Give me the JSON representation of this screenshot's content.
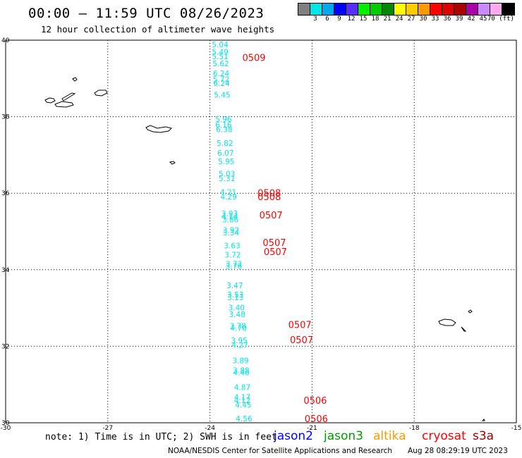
{
  "header": {
    "title": "00:00 — 11:59 UTC 08/26/2023",
    "subtitle": "12 hour collection of altimeter wave heights"
  },
  "colorbar": {
    "colors": [
      "#808080",
      "#00e6e6",
      "#00aaee",
      "#0000ff",
      "#5a2dff",
      "#00ee00",
      "#00cc00",
      "#008800",
      "#ffff00",
      "#ffcc00",
      "#ff9900",
      "#ff0000",
      "#dd0000",
      "#aa0000",
      "#aa00aa",
      "#cc88ff",
      "#ffaaee",
      "#000000"
    ],
    "labels": [
      "3",
      "6",
      "9",
      "12",
      "15",
      "18",
      "21",
      "24",
      "27",
      "30",
      "33",
      "36",
      "39",
      "42",
      "45",
      "70 (ft)"
    ]
  },
  "axes": {
    "lat_labels": [
      "40",
      "38",
      "36",
      "34",
      "32",
      "30"
    ],
    "lon_labels": [
      "-30",
      "-27",
      "-24",
      "-21",
      "-18",
      "-15"
    ]
  },
  "swh_values": [
    {
      "lon": -23.7,
      "lat": 39.82,
      "v": "5.04"
    },
    {
      "lon": -23.7,
      "lat": 39.62,
      "v": "5.49"
    },
    {
      "lon": -23.7,
      "lat": 39.5,
      "v": "5.51"
    },
    {
      "lon": -23.68,
      "lat": 39.32,
      "v": "5.62"
    },
    {
      "lon": -23.67,
      "lat": 39.06,
      "v": "6.24"
    },
    {
      "lon": -23.67,
      "lat": 38.9,
      "v": "5.72"
    },
    {
      "lon": -23.66,
      "lat": 38.8,
      "v": "6.24"
    },
    {
      "lon": -23.64,
      "lat": 38.5,
      "v": "5.45"
    },
    {
      "lon": -23.6,
      "lat": 37.86,
      "v": "5.96"
    },
    {
      "lon": -23.6,
      "lat": 37.72,
      "v": "6.16"
    },
    {
      "lon": -23.58,
      "lat": 37.6,
      "v": "6.38"
    },
    {
      "lon": -23.56,
      "lat": 37.24,
      "v": "5.82"
    },
    {
      "lon": -23.54,
      "lat": 36.98,
      "v": "6.07"
    },
    {
      "lon": -23.52,
      "lat": 36.76,
      "v": "5.95"
    },
    {
      "lon": -23.5,
      "lat": 36.44,
      "v": "5.03"
    },
    {
      "lon": -23.5,
      "lat": 36.32,
      "v": "5.31"
    },
    {
      "lon": -23.46,
      "lat": 35.96,
      "v": "4.21"
    },
    {
      "lon": -23.45,
      "lat": 35.84,
      "v": "4.29"
    },
    {
      "lon": -23.42,
      "lat": 35.4,
      "v": "3.93"
    },
    {
      "lon": -23.42,
      "lat": 35.32,
      "v": "4.14"
    },
    {
      "lon": -23.4,
      "lat": 35.24,
      "v": "3.86"
    },
    {
      "lon": -23.38,
      "lat": 34.96,
      "v": "3.92"
    },
    {
      "lon": -23.38,
      "lat": 34.9,
      "v": "3.34"
    },
    {
      "lon": -23.35,
      "lat": 34.56,
      "v": "3.63"
    },
    {
      "lon": -23.33,
      "lat": 34.32,
      "v": "3.72"
    },
    {
      "lon": -23.3,
      "lat": 34.08,
      "v": "3.73"
    },
    {
      "lon": -23.3,
      "lat": 34.02,
      "v": "3.76"
    },
    {
      "lon": -23.27,
      "lat": 33.52,
      "v": "3.47"
    },
    {
      "lon": -23.25,
      "lat": 33.28,
      "v": "3.53"
    },
    {
      "lon": -23.25,
      "lat": 33.2,
      "v": "3.13"
    },
    {
      "lon": -23.22,
      "lat": 32.94,
      "v": "3.40"
    },
    {
      "lon": -23.2,
      "lat": 32.76,
      "v": "3.48"
    },
    {
      "lon": -23.18,
      "lat": 32.46,
      "v": "3.78"
    },
    {
      "lon": -23.16,
      "lat": 32.4,
      "v": "4.70"
    },
    {
      "lon": -23.14,
      "lat": 32.08,
      "v": "3.95"
    },
    {
      "lon": -23.12,
      "lat": 31.96,
      "v": "4.27"
    },
    {
      "lon": -23.1,
      "lat": 31.56,
      "v": "3.89"
    },
    {
      "lon": -23.08,
      "lat": 31.3,
      "v": "3.88"
    },
    {
      "lon": -23.08,
      "lat": 31.24,
      "v": "4.46"
    },
    {
      "lon": -23.05,
      "lat": 30.86,
      "v": "4.87"
    },
    {
      "lon": -23.05,
      "lat": 30.6,
      "v": "4.17"
    },
    {
      "lon": -23.05,
      "lat": 30.52,
      "v": "4.12"
    },
    {
      "lon": -23.02,
      "lat": 30.4,
      "v": "4.45"
    },
    {
      "lon": -23.0,
      "lat": 30.04,
      "v": "4.56"
    }
  ],
  "pass_labels": [
    {
      "lon": -23.05,
      "lat": 39.46,
      "v": "0509"
    },
    {
      "lon": -22.6,
      "lat": 35.92,
      "v": "0508"
    },
    {
      "lon": -22.6,
      "lat": 35.82,
      "v": "0508"
    },
    {
      "lon": -22.55,
      "lat": 35.34,
      "v": "0507"
    },
    {
      "lon": -22.45,
      "lat": 34.62,
      "v": "0507"
    },
    {
      "lon": -22.42,
      "lat": 34.38,
      "v": "0507"
    },
    {
      "lon": -21.7,
      "lat": 32.48,
      "v": "0507"
    },
    {
      "lon": -21.65,
      "lat": 32.08,
      "v": "0507"
    },
    {
      "lon": -21.25,
      "lat": 30.5,
      "v": "0506"
    },
    {
      "lon": -21.22,
      "lat": 30.02,
      "v": "0506"
    }
  ],
  "colors": {
    "swh": "#00e6e6",
    "pass": "#ff0000"
  },
  "footer": {
    "note": "note: 1) Time is in UTC; 2) SWH is in feet",
    "satellites": [
      {
        "name": "jason2",
        "color": "#0000ff"
      },
      {
        "name": "jason3",
        "color": "#009900"
      },
      {
        "name": "altika",
        "color": "#ff9900"
      },
      {
        "name": "cryosat",
        "color": "#ff0000"
      },
      {
        "name": "s3a",
        "color": "#990000"
      }
    ],
    "credit": "NOAA/NESDIS Center for Satellite Applications and Research",
    "timestamp": "Aug 28 08:29:19 UTC 2023"
  }
}
